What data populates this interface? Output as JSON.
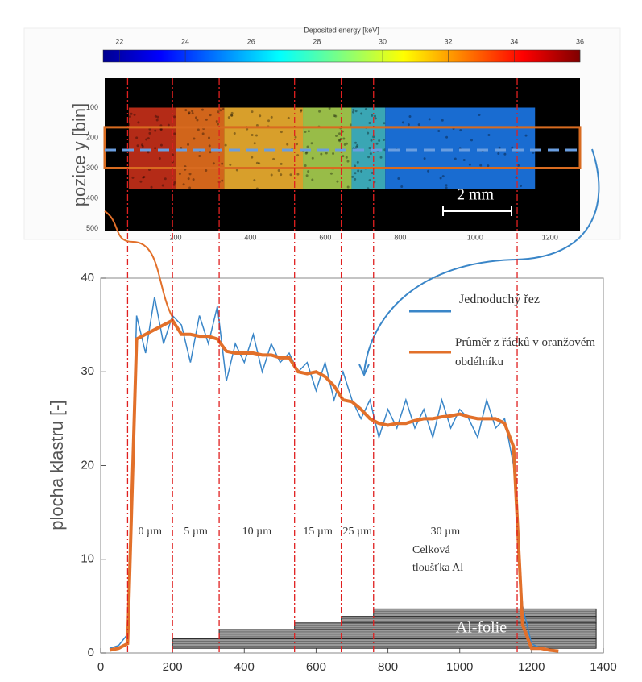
{
  "colorbar": {
    "title": "Deposited energy [keV]",
    "clim": [
      21.5,
      36
    ],
    "ticks": [
      22,
      24,
      26,
      28,
      30,
      32,
      34,
      36
    ]
  },
  "heatmap": {
    "ylabel": "pozice y [bin]",
    "xlim": [
      0,
      1280
    ],
    "ylim": [
      0,
      500
    ],
    "xticks": [
      200,
      400,
      600,
      800,
      1000,
      1200
    ],
    "yticks": [
      100,
      200,
      300,
      400,
      500
    ],
    "scalebar": "2 mm",
    "rect_y": [
      165,
      300
    ],
    "cut_y": 240,
    "colors": [
      "#c8301a",
      "#e8701e",
      "#f0b030",
      "#a8d050",
      "#40b8c8",
      "#1c78e8"
    ]
  },
  "chart_data": {
    "type": "line",
    "ylabel": "plocha klastru [-]",
    "xlim": [
      0,
      1400
    ],
    "ylim": [
      0,
      40
    ],
    "xticks": [
      0,
      200,
      400,
      600,
      800,
      1000,
      1200,
      1400
    ],
    "yticks": [
      0,
      10,
      20,
      30,
      40
    ],
    "x": [
      25,
      50,
      75,
      100,
      125,
      150,
      175,
      200,
      225,
      250,
      275,
      300,
      325,
      350,
      375,
      400,
      425,
      450,
      475,
      500,
      525,
      550,
      575,
      600,
      625,
      650,
      675,
      700,
      725,
      750,
      775,
      800,
      825,
      850,
      875,
      900,
      925,
      950,
      975,
      1000,
      1025,
      1050,
      1075,
      1100,
      1125,
      1150,
      1175,
      1200,
      1225,
      1250,
      1275
    ],
    "series": [
      {
        "name": "Jednoduchý řez",
        "color": "#3a86c8",
        "values": [
          0.5,
          0.8,
          2,
          36,
          32,
          38,
          33,
          36,
          35,
          31,
          36,
          33,
          37,
          29,
          33,
          31,
          34,
          30,
          33,
          31,
          32,
          30,
          31,
          28,
          31,
          27,
          30,
          27,
          25,
          27,
          23,
          26,
          24,
          27,
          24,
          26,
          23,
          27,
          24,
          26,
          25,
          23,
          27,
          24,
          25,
          20,
          5,
          1,
          0.5,
          0.3,
          0.2
        ]
      },
      {
        "name": "Průměr z řádků v oranžovém obdélníku",
        "color": "#e2702a",
        "values": [
          0.3,
          0.5,
          1,
          33.5,
          34,
          34.5,
          35,
          35.5,
          34,
          34,
          33.8,
          33.8,
          33.5,
          32.2,
          32,
          32,
          32,
          31.8,
          31.8,
          31.5,
          31.5,
          30,
          29.8,
          30,
          29.5,
          28.5,
          27,
          26.8,
          26,
          25,
          24.5,
          24.3,
          24.5,
          24.5,
          24.8,
          25,
          25,
          25.2,
          25.3,
          25.5,
          25.2,
          25,
          25,
          25,
          24.5,
          22,
          3,
          0.5,
          0.5,
          0.3,
          0.2
        ]
      }
    ],
    "boundaries": [
      75,
      200,
      330,
      540,
      670,
      760,
      1160
    ],
    "thickness_labels": [
      "0 µm",
      "5 µm",
      "10 µm",
      "15 µm",
      "25 µm",
      "30 µm"
    ],
    "total_label": "Celková tloušťka Al",
    "foil": {
      "label": "Al-folie",
      "starts": [
        200,
        330,
        540,
        670,
        760
      ],
      "tops": [
        1.5,
        2.5,
        3.2,
        3.9,
        4.7
      ],
      "bottom": 0.5,
      "end": 1380
    }
  }
}
